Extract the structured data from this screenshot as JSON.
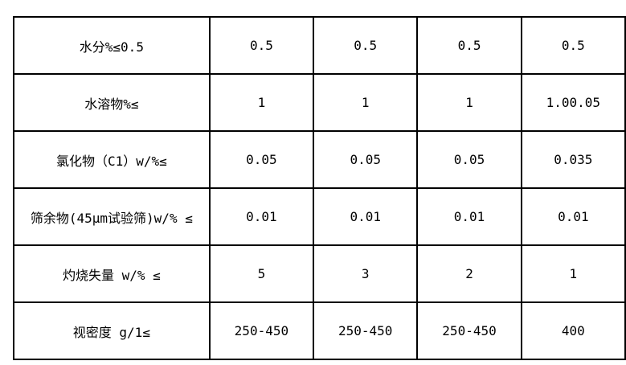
{
  "page": {
    "background_color": "#ffffff",
    "border_color": "#000000",
    "text_color": "#000000"
  },
  "table": {
    "rows": [
      {
        "label": "水分%≤0.5",
        "values": [
          "0.5",
          "0.5",
          "0.5",
          "0.5"
        ]
      },
      {
        "label": "水溶物%≤",
        "values": [
          "1",
          "1",
          "1",
          "1.00.05"
        ]
      },
      {
        "label": "氯化物（C1）w/%≤",
        "values": [
          "0.05",
          "0.05",
          "0.05",
          "0.035"
        ]
      },
      {
        "label": "筛余物(45μm试验筛)w/% ≤",
        "values": [
          "0.01",
          "0.01",
          "0.01",
          "0.01"
        ]
      },
      {
        "label": "灼烧失量 w/% ≤",
        "values": [
          "5",
          "3",
          "2",
          "1"
        ]
      },
      {
        "label": "视密度 g/1≤",
        "values": [
          "250-450",
          "250-450",
          "250-450",
          "400"
        ]
      }
    ]
  }
}
